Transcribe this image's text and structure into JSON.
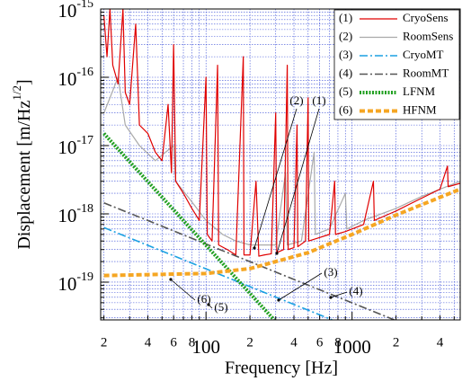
{
  "chart_data": {
    "type": "line",
    "xlabel": "Frequency [Hz]",
    "ylabel": {
      "text": "Displacement [m/Hz",
      "superscript": "1/2",
      "close": "]"
    },
    "xscale": "log",
    "yscale": "log",
    "grid": true,
    "legend": "upper right",
    "xlim": [
      19,
      5500
    ],
    "ylim": [
      2.8e-20,
      1e-15
    ],
    "xticks": [
      {
        "value": 20,
        "label": "2"
      },
      {
        "value": 40,
        "label": "4"
      },
      {
        "value": 60,
        "label": "6"
      },
      {
        "value": 80,
        "label": "8"
      },
      100,
      {
        "value": 200,
        "label": "2"
      },
      {
        "value": 400,
        "label": "4"
      },
      {
        "value": 600,
        "label": "6"
      },
      {
        "value": 800,
        "label": "8"
      },
      1000,
      {
        "value": 2000,
        "label": "2"
      },
      {
        "value": 4000,
        "label": "4"
      }
    ],
    "xminorticks": [
      30,
      50,
      70,
      90,
      300,
      500,
      700,
      900,
      3000,
      5000
    ],
    "yticks": [
      {
        "value": 1e-19,
        "label": "10-19"
      },
      {
        "value": 1e-18,
        "label": "10-18"
      },
      {
        "value": 1e-17,
        "label": "10-17"
      },
      {
        "value": 1e-16,
        "label": "10-16"
      },
      {
        "value": 1e-15,
        "label": "10-15"
      }
    ],
    "yminorticks": [
      3e-20,
      4e-20,
      5e-20,
      6e-20,
      7e-20,
      8e-20,
      9e-20,
      2e-19,
      3e-19,
      4e-19,
      5e-19,
      6e-19,
      7e-19,
      8e-19,
      9e-19,
      2e-18,
      3e-18,
      4e-18,
      5e-18,
      6e-18,
      7e-18,
      8e-18,
      9e-18,
      2e-17,
      3e-17,
      4e-17,
      5e-17,
      6e-17,
      7e-17,
      8e-17,
      9e-17,
      2e-16,
      3e-16,
      4e-16,
      5e-16,
      6e-16,
      7e-16,
      8e-16,
      9e-16
    ],
    "series": [
      {
        "label": "(1)",
        "name": "CryoSens",
        "color": "#e00000",
        "style": "solid",
        "width": 1.2,
        "x": [
          20,
          21,
          22,
          23,
          25,
          27,
          28,
          30,
          33,
          35,
          40,
          45,
          50,
          55,
          58,
          60,
          62,
          70,
          80,
          90,
          100,
          102,
          110,
          120,
          122,
          140,
          160,
          180,
          182,
          200,
          220,
          230,
          250,
          280,
          300,
          305,
          340,
          360,
          365,
          400,
          420,
          425,
          480,
          500,
          505,
          600,
          700,
          760,
          770,
          900,
          1000,
          1200,
          1400,
          1420,
          1800,
          2000,
          2500,
          3000,
          3500,
          4000,
          4500,
          4550,
          5500
        ],
        "values": [
          8e-16,
          2e-16,
          1e-15,
          1.5e-16,
          8e-17,
          1e-15,
          6e-17,
          4e-17,
          6e-16,
          2e-17,
          1.5e-17,
          8e-18,
          6e-18,
          4e-17,
          4e-18,
          3e-16,
          3e-18,
          2e-18,
          1.2e-18,
          8e-19,
          1e-16,
          5e-19,
          4e-19,
          1.5e-16,
          3.5e-19,
          3e-19,
          2.5e-19,
          2e-16,
          2.5e-19,
          2.5e-19,
          3e-18,
          2.4e-19,
          2.5e-19,
          2.6e-19,
          3e-17,
          2.7e-19,
          3e-19,
          1.5e-16,
          3e-19,
          3.2e-19,
          2e-17,
          3.3e-19,
          4e-19,
          5e-17,
          4e-19,
          4.5e-19,
          5e-19,
          3e-18,
          5e-19,
          5.5e-19,
          6e-19,
          7e-19,
          3e-18,
          8e-19,
          1e-18,
          1.1e-18,
          1.4e-18,
          1.7e-18,
          2e-18,
          2.3e-18,
          5e-18,
          2.5e-18,
          2.8e-18
        ]
      },
      {
        "label": "(2)",
        "name": "RoomSens",
        "color": "#aaaaaa",
        "style": "solid",
        "width": 1.2,
        "x": [
          20,
          25,
          28,
          35,
          45,
          60,
          62,
          80,
          100,
          130,
          160,
          200,
          250,
          300,
          350,
          360,
          450,
          550,
          560,
          700,
          900,
          920,
          1200,
          2000,
          3000,
          5500
        ],
        "values": [
          3e-17,
          1e-16,
          2e-17,
          1e-17,
          6e-18,
          1e-17,
          3e-18,
          1.5e-18,
          8e-19,
          5e-19,
          4e-19,
          3.5e-19,
          3.5e-19,
          3.5e-19,
          4e-18,
          3.5e-19,
          4e-19,
          8e-18,
          5e-19,
          6e-19,
          2e-18,
          6e-19,
          8e-19,
          1.2e-18,
          1.8e-18,
          3e-18
        ]
      },
      {
        "label": "(3)",
        "name": "CryoMT",
        "color": "#1ba1e2",
        "style": "dashdot",
        "width": 1.6,
        "x": [
          20,
          730
        ],
        "values": [
          6.3e-19,
          2.8e-20
        ]
      },
      {
        "label": "(4)",
        "name": "RoomMT",
        "color": "#555555",
        "style": "dashdot",
        "width": 1.6,
        "x": [
          20,
          1950
        ],
        "values": [
          1.45e-18,
          2.8e-20
        ]
      },
      {
        "label": "(5)",
        "name": "LFNM",
        "color": "#22a022",
        "style": "dotted",
        "width": 4,
        "x": [
          20,
          293
        ],
        "values": [
          1.5e-17,
          2.8e-20
        ]
      },
      {
        "label": "(6)",
        "name": "HFNM",
        "color": "#f5a623",
        "style": "dashed",
        "width": 4,
        "x": [
          20,
          100,
          200,
          300,
          500,
          1000,
          2000,
          5500
        ],
        "values": [
          1.25e-19,
          1.34e-19,
          1.58e-19,
          2e-19,
          2.7e-19,
          5e-19,
          9.6e-19,
          2.3e-18
        ]
      }
    ],
    "annotations": [
      "(2)",
      "(1)",
      "(3)",
      "(4)",
      "(6)",
      "(5)"
    ]
  }
}
